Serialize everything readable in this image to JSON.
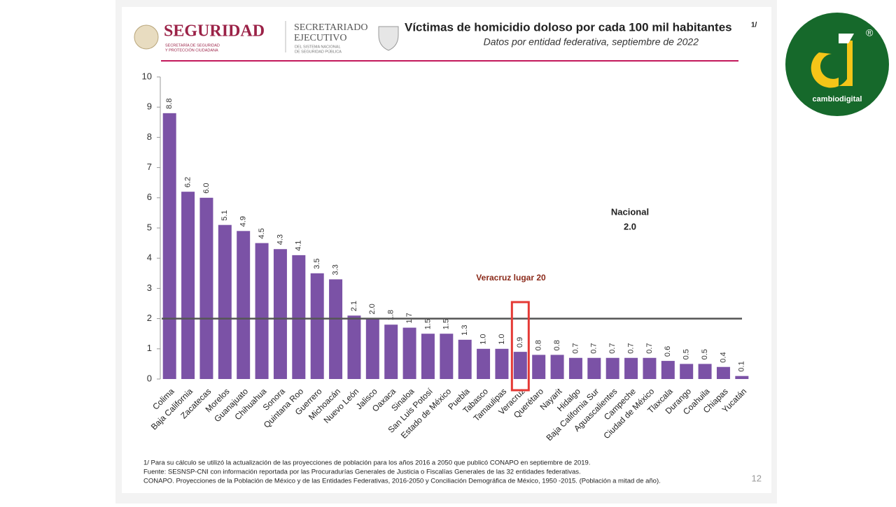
{
  "header": {
    "brand": "SEGURIDAD",
    "brand_sub_1": "SECRETARÍA DE SEGURIDAD",
    "brand_sub_2": "Y PROTECCIÓN CIUDADANA",
    "agency_1": "SECRETARIADO",
    "agency_2": "EJECUTIVO",
    "agency_sub_1": "DEL SISTEMA NACIONAL",
    "agency_sub_2": "DE SEGURIDAD PÚBLICA"
  },
  "chart_data": {
    "type": "bar",
    "title": "Víctimas de homicidio doloso por cada 100 mil habitantes",
    "title_note": "1/",
    "subtitle": "Datos por entidad federativa, septiembre de 2022",
    "categories": [
      "Colima",
      "Baja California",
      "Zacatecas",
      "Morelos",
      "Guanajuato",
      "Chihuahua",
      "Sonora",
      "Quintana Roo",
      "Guerrero",
      "Michoacán",
      "Nuevo León",
      "Jalisco",
      "Oaxaca",
      "Sinaloa",
      "San Luis Potosí",
      "Estado de México",
      "Puebla",
      "Tabasco",
      "Tamaulipas",
      "Veracruz",
      "Querétaro",
      "Nayarit",
      "Hidalgo",
      "Baja California Sur",
      "Aguascalientes",
      "Campeche",
      "Ciudad de México",
      "Tlaxcala",
      "Durango",
      "Coahuila",
      "Chiapas",
      "Yucatán"
    ],
    "values": [
      8.8,
      6.2,
      6.0,
      5.1,
      4.9,
      4.5,
      4.3,
      4.1,
      3.5,
      3.3,
      2.1,
      2.0,
      1.8,
      1.7,
      1.5,
      1.5,
      1.3,
      1.0,
      1.0,
      0.9,
      0.8,
      0.8,
      0.7,
      0.7,
      0.7,
      0.7,
      0.7,
      0.6,
      0.5,
      0.5,
      0.4,
      0.1
    ],
    "value_labels": [
      "8.8",
      "6.2",
      "6.0",
      "5.1",
      "4.9",
      "4.5",
      "4.3",
      "4.1",
      "3.5",
      "3.3",
      "2.1",
      "2.0",
      "1.8",
      "1.7",
      "1.5",
      "1.5",
      "1.3",
      "1.0",
      "1.0",
      "0.9",
      "0.8",
      "0.8",
      "0.7",
      "0.7",
      "0.7",
      "0.7",
      "0.7",
      "0.6",
      "0.5",
      "0.5",
      "0.4",
      "0.1"
    ],
    "color": "#7b52a6",
    "ylim": [
      0,
      10
    ],
    "yticks": [
      0,
      1,
      2,
      3,
      4,
      5,
      6,
      7,
      8,
      9,
      10
    ],
    "national": {
      "label": "Nacional",
      "value": 2.0,
      "value_label": "2.0",
      "color": "#555555"
    },
    "highlight": {
      "index": 19,
      "label": "Veracruz lugar 20",
      "color": "#e53935"
    }
  },
  "footer": {
    "note_1": "1/ Para su cálculo se utilizó la actualización de las proyecciones de población para los años 2016 a 2050 que publicó CONAPO en septiembre de 2019.",
    "note_2": "Fuente: SESNSP-CNI con información reportada por las Procuradurías Generales de Justicia o Fiscalías Generales de las 32 entidades federativas.",
    "note_3": "CONAPO. Proyecciones de la Población de México y de las Entidades Federativas, 2016-2050 y Conciliación Demográfica de México, 1950 -2015. (Población a mitad de año).",
    "page": "12"
  },
  "logo": {
    "name": "cambiodigital",
    "mark": "®"
  }
}
